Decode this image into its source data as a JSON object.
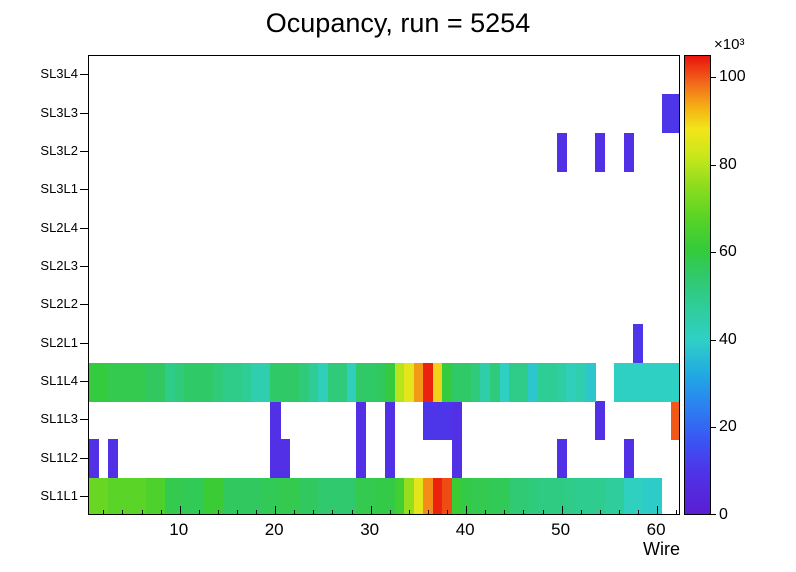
{
  "title": "Ocupancy, run = 5254",
  "colorbar": {
    "exponent_label": "×10³",
    "ticks": [
      0,
      20,
      40,
      60,
      80,
      100
    ]
  },
  "palette": [
    {
      "t": 0.0,
      "c": "#5a1ed2"
    },
    {
      "t": 0.09,
      "c": "#4f33e8"
    },
    {
      "t": 0.16,
      "c": "#3a55f3"
    },
    {
      "t": 0.23,
      "c": "#2c7ef2"
    },
    {
      "t": 0.3,
      "c": "#21a7e4"
    },
    {
      "t": 0.38,
      "c": "#2fd0c5"
    },
    {
      "t": 0.45,
      "c": "#2fcd9b"
    },
    {
      "t": 0.52,
      "c": "#30c96a"
    },
    {
      "t": 0.58,
      "c": "#35cb38"
    },
    {
      "t": 0.65,
      "c": "#5bd425"
    },
    {
      "t": 0.72,
      "c": "#90dd1e"
    },
    {
      "t": 0.78,
      "c": "#c8e71b"
    },
    {
      "t": 0.84,
      "c": "#f2e619"
    },
    {
      "t": 0.89,
      "c": "#f5ad15"
    },
    {
      "t": 0.94,
      "c": "#f36a1a"
    },
    {
      "t": 1.0,
      "c": "#e8140c"
    }
  ],
  "chart_data": {
    "type": "heatmap",
    "title": "Ocupancy, run = 5254",
    "xlabel": "Wire",
    "x_range": [
      0.5,
      62.5
    ],
    "x_major_ticks": [
      10,
      20,
      30,
      40,
      50,
      60
    ],
    "x_minor_tick_step": 2,
    "zmin": 0,
    "zmax": 105,
    "z_unit": "counts × 10³",
    "n_wires": 62,
    "rows_bottom_to_top": [
      "SL1L1",
      "SL1L2",
      "SL1L3",
      "SL1L4",
      "SL2L1",
      "SL2L2",
      "SL2L3",
      "SL2L4",
      "SL3L1",
      "SL3L2",
      "SL3L3",
      "SL3L4"
    ],
    "values_by_row": {
      "SL1L1": [
        70,
        70,
        68,
        68,
        68,
        68,
        66,
        66,
        58,
        58,
        57,
        57,
        62,
        62,
        56,
        56,
        56,
        56,
        57,
        57,
        58,
        58,
        56,
        56,
        54,
        54,
        54,
        54,
        58,
        58,
        59,
        59,
        63,
        76,
        86,
        96,
        104,
        101,
        62,
        59,
        58,
        58,
        57,
        57,
        53,
        53,
        52,
        51,
        51,
        51,
        50,
        49,
        49,
        49,
        47,
        47,
        41,
        41,
        39,
        39,
        0,
        0
      ],
      "SL1L2": [
        8,
        0,
        8,
        0,
        0,
        0,
        0,
        0,
        0,
        0,
        0,
        0,
        0,
        0,
        0,
        0,
        0,
        0,
        0,
        8,
        8,
        0,
        0,
        0,
        0,
        0,
        0,
        0,
        8,
        0,
        0,
        8,
        0,
        0,
        0,
        0,
        0,
        0,
        8,
        0,
        0,
        0,
        0,
        0,
        0,
        0,
        0,
        0,
        0,
        8,
        0,
        0,
        0,
        0,
        0,
        0,
        8,
        0,
        0,
        0,
        0,
        0
      ],
      "SL1L3": [
        0,
        0,
        0,
        0,
        0,
        0,
        0,
        0,
        0,
        0,
        0,
        0,
        0,
        0,
        0,
        0,
        0,
        0,
        0,
        8,
        0,
        0,
        0,
        0,
        0,
        0,
        0,
        0,
        8,
        0,
        0,
        8,
        0,
        0,
        0,
        10,
        10,
        10,
        8,
        0,
        0,
        0,
        0,
        0,
        0,
        0,
        0,
        0,
        0,
        0,
        0,
        0,
        0,
        8,
        0,
        0,
        0,
        0,
        0,
        0,
        0,
        100
      ],
      "SL1L4": [
        60,
        60,
        58,
        58,
        58,
        58,
        56,
        56,
        50,
        52,
        55,
        55,
        55,
        52,
        50,
        50,
        48,
        44,
        44,
        55,
        55,
        55,
        52,
        48,
        42,
        52,
        52,
        42,
        55,
        55,
        56,
        60,
        80,
        86,
        95,
        104,
        90,
        60,
        55,
        55,
        52,
        45,
        52,
        40,
        50,
        50,
        38,
        48,
        48,
        46,
        42,
        44,
        38,
        0,
        0,
        40,
        40,
        40,
        40,
        40,
        40,
        40
      ],
      "SL2L1": [
        0,
        0,
        0,
        0,
        0,
        0,
        0,
        0,
        0,
        0,
        0,
        0,
        0,
        0,
        0,
        0,
        0,
        0,
        0,
        0,
        0,
        0,
        0,
        0,
        0,
        0,
        0,
        0,
        0,
        0,
        0,
        0,
        0,
        0,
        0,
        0,
        0,
        0,
        0,
        0,
        0,
        0,
        0,
        0,
        0,
        0,
        0,
        0,
        0,
        0,
        0,
        0,
        0,
        0,
        0,
        0,
        0,
        10,
        0,
        0,
        0,
        0
      ],
      "SL2L2": [
        0,
        0,
        0,
        0,
        0,
        0,
        0,
        0,
        0,
        0,
        0,
        0,
        0,
        0,
        0,
        0,
        0,
        0,
        0,
        0,
        0,
        0,
        0,
        0,
        0,
        0,
        0,
        0,
        0,
        0,
        0,
        0,
        0,
        0,
        0,
        0,
        0,
        0,
        0,
        0,
        0,
        0,
        0,
        0,
        0,
        0,
        0,
        0,
        0,
        0,
        0,
        0,
        0,
        0,
        0,
        0,
        0,
        0,
        0,
        0,
        0,
        0
      ],
      "SL2L3": [
        0,
        0,
        0,
        0,
        0,
        0,
        0,
        0,
        0,
        0,
        0,
        0,
        0,
        0,
        0,
        0,
        0,
        0,
        0,
        0,
        0,
        0,
        0,
        0,
        0,
        0,
        0,
        0,
        0,
        0,
        0,
        0,
        0,
        0,
        0,
        0,
        0,
        0,
        0,
        0,
        0,
        0,
        0,
        0,
        0,
        0,
        0,
        0,
        0,
        0,
        0,
        0,
        0,
        0,
        0,
        0,
        0,
        0,
        0,
        0,
        0,
        0
      ],
      "SL2L4": [
        0,
        0,
        0,
        0,
        0,
        0,
        0,
        0,
        0,
        0,
        0,
        0,
        0,
        0,
        0,
        0,
        0,
        0,
        0,
        0,
        0,
        0,
        0,
        0,
        0,
        0,
        0,
        0,
        0,
        0,
        0,
        0,
        0,
        0,
        0,
        0,
        0,
        0,
        0,
        0,
        0,
        0,
        0,
        0,
        0,
        0,
        0,
        0,
        0,
        0,
        0,
        0,
        0,
        0,
        0,
        0,
        0,
        0,
        0,
        0,
        0,
        0
      ],
      "SL3L1": [
        0,
        0,
        0,
        0,
        0,
        0,
        0,
        0,
        0,
        0,
        0,
        0,
        0,
        0,
        0,
        0,
        0,
        0,
        0,
        0,
        0,
        0,
        0,
        0,
        0,
        0,
        0,
        0,
        0,
        0,
        0,
        0,
        0,
        0,
        0,
        0,
        0,
        0,
        0,
        0,
        0,
        0,
        0,
        0,
        0,
        0,
        0,
        0,
        0,
        0,
        0,
        0,
        0,
        0,
        0,
        0,
        0,
        0,
        0,
        0,
        0,
        0
      ],
      "SL3L2": [
        0,
        0,
        0,
        0,
        0,
        0,
        0,
        0,
        0,
        0,
        0,
        0,
        0,
        0,
        0,
        0,
        0,
        0,
        0,
        0,
        0,
        0,
        0,
        0,
        0,
        0,
        0,
        0,
        0,
        0,
        0,
        0,
        0,
        0,
        0,
        0,
        0,
        0,
        0,
        0,
        0,
        0,
        0,
        0,
        0,
        0,
        0,
        0,
        0,
        8,
        0,
        0,
        0,
        8,
        0,
        0,
        8,
        0,
        0,
        0,
        0,
        0
      ],
      "SL3L3": [
        0,
        0,
        0,
        0,
        0,
        0,
        0,
        0,
        0,
        0,
        0,
        0,
        0,
        0,
        0,
        0,
        0,
        0,
        0,
        0,
        0,
        0,
        0,
        0,
        0,
        0,
        0,
        0,
        0,
        0,
        0,
        0,
        0,
        0,
        0,
        0,
        0,
        0,
        0,
        0,
        0,
        0,
        0,
        0,
        0,
        0,
        0,
        0,
        0,
        0,
        0,
        0,
        0,
        0,
        0,
        0,
        0,
        0,
        0,
        0,
        10,
        10
      ],
      "SL3L4": [
        0,
        0,
        0,
        0,
        0,
        0,
        0,
        0,
        0,
        0,
        0,
        0,
        0,
        0,
        0,
        0,
        0,
        0,
        0,
        0,
        0,
        0,
        0,
        0,
        0,
        0,
        0,
        0,
        0,
        0,
        0,
        0,
        0,
        0,
        0,
        0,
        0,
        0,
        0,
        0,
        0,
        0,
        0,
        0,
        0,
        0,
        0,
        0,
        0,
        0,
        0,
        0,
        0,
        0,
        0,
        0,
        0,
        0,
        0,
        0,
        0,
        0
      ]
    }
  }
}
